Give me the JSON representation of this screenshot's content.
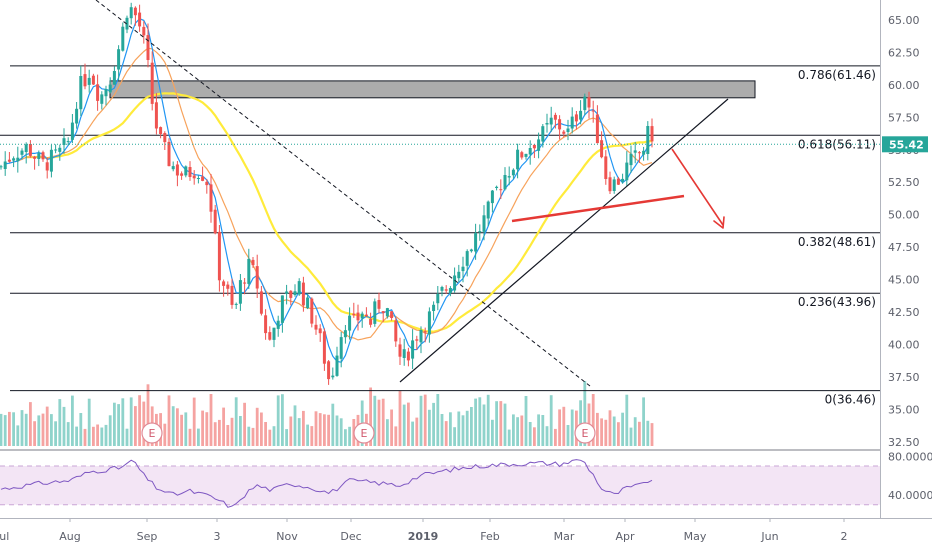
{
  "chart_data": {
    "type": "candlestick",
    "price_axis": {
      "range": [
        32.0,
        66.5
      ],
      "ticks": [
        "65.00",
        "62.50",
        "60.00",
        "57.50",
        "55.00",
        "52.50",
        "50.00",
        "47.50",
        "45.00",
        "42.50",
        "40.00",
        "37.50",
        "35.00",
        "32.50"
      ],
      "last_price": "55.42",
      "last_price_color": "#26a69a"
    },
    "time_axis": {
      "ticks": [
        "Jul",
        "Aug",
        "Sep",
        "3",
        "Nov",
        "Dec",
        "2019",
        "Feb",
        "Mar",
        "Apr",
        "May",
        "Jun",
        "2"
      ],
      "bold": [
        "2019"
      ]
    },
    "fib_levels": [
      {
        "label": "0.786(61.46)",
        "value": 61.46
      },
      {
        "label": "0.618(56.11)",
        "value": 56.11
      },
      {
        "label": "0.382(48.61)",
        "value": 48.61
      },
      {
        "label": "0.236(43.96)",
        "value": 43.96
      },
      {
        "label": "0(36.46)",
        "value": 36.46
      }
    ],
    "resistance_zone": [
      59.0,
      60.3
    ],
    "earnings_marker": "E",
    "rsi": {
      "ticks": [
        "80.0000",
        "40.0000"
      ],
      "levels": [
        70,
        30
      ],
      "range": [
        20,
        85
      ]
    },
    "colors": {
      "up": "#26a69a",
      "down": "#ef5350",
      "ma_fast": "#2196f3",
      "ma_mid": "#f7a35c",
      "ma_slow": "#ffeb3b",
      "rsi_line": "#7e57c2",
      "rsi_band": "#f3e5f5",
      "arrow": "#e53935",
      "red_trend": "#e53935"
    }
  }
}
